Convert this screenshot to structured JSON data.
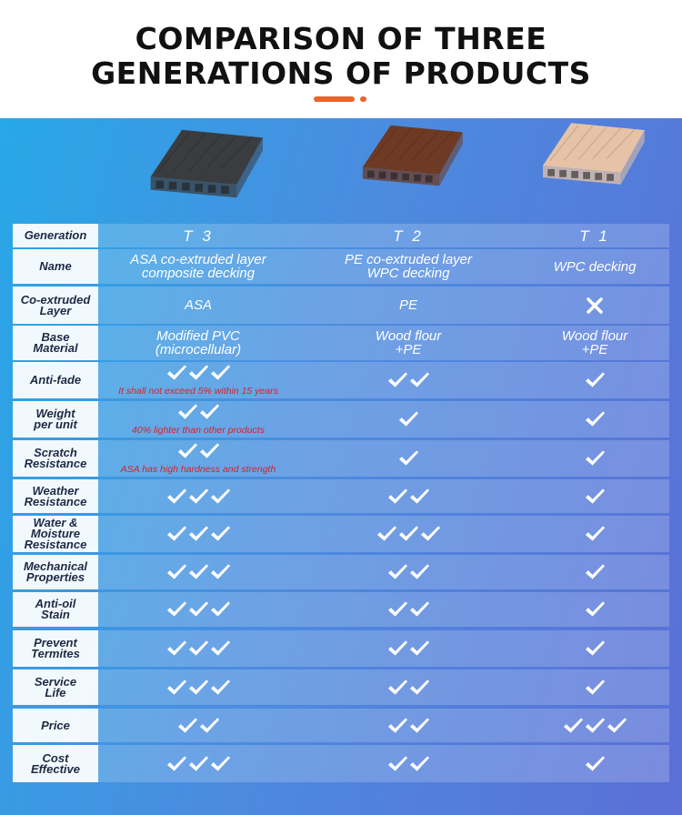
{
  "title": {
    "line1": "COMPARISON OF THREE",
    "line2": "GENERATIONS OF PRODUCTS"
  },
  "colors": {
    "accent": "#e8652b",
    "note_red": "#d8222a",
    "label_text": "#1d2a44"
  },
  "products": [
    {
      "generation": "T 3",
      "name_line1": "ASA co-extruded layer",
      "name_line2": "composite decking",
      "co_extruded": "ASA",
      "base_line1": "Modified PVC",
      "base_line2": "(microcellular)",
      "plank_color": "#3a3c40"
    },
    {
      "generation": "T 2",
      "name_line1": "PE co-extruded layer",
      "name_line2": "WPC  decking",
      "co_extruded": "PE",
      "base_line1": "Wood flour",
      "base_line2": "+PE",
      "plank_color": "#6e3a23"
    },
    {
      "generation": "T 1",
      "name_line1": "WPC  decking",
      "name_line2": "",
      "co_extruded_icon": "cross-icon",
      "base_line1": "Wood flour",
      "base_line2": "+PE",
      "plank_color": "#e6c3a6"
    }
  ],
  "labels": {
    "generation": "Generation",
    "name": "Name",
    "co_extruded_line1": "Co-extruded",
    "co_extruded_line2": "Layer",
    "base_line1": "Base",
    "base_line2": "Material"
  },
  "rating_rows": [
    {
      "label_line1": "Anti-fade",
      "label_line2": "",
      "t3": 3,
      "t2": 2,
      "t1": 1,
      "note": "It shall not exceed 5% within 15 years"
    },
    {
      "label_line1": "Weight",
      "label_line2": "per unit",
      "t3": 2,
      "t2": 1,
      "t1": 1,
      "note": "40% lighter than other products"
    },
    {
      "label_line1": "Scratch",
      "label_line2": "Resistance",
      "t3": 2,
      "t2": 1,
      "t1": 1,
      "note": "ASA has high hardness and strength"
    },
    {
      "label_line1": "Weather",
      "label_line2": "Resistance",
      "t3": 3,
      "t2": 2,
      "t1": 1,
      "note": ""
    },
    {
      "label_line1": "Water &",
      "label_line2": "Moisture",
      "label_line3": "Resistance",
      "t3": 3,
      "t2": 3,
      "t1": 1,
      "note": ""
    },
    {
      "label_line1": "Mechanical",
      "label_line2": "Properties",
      "t3": 3,
      "t2": 2,
      "t1": 1,
      "note": ""
    },
    {
      "label_line1": "Anti-oil",
      "label_line2": "Stain",
      "t3": 3,
      "t2": 2,
      "t1": 1,
      "note": ""
    },
    {
      "label_line1": "Prevent",
      "label_line2": "Termites",
      "t3": 3,
      "t2": 2,
      "t1": 1,
      "note": ""
    },
    {
      "label_line1": "Service",
      "label_line2": "Life",
      "t3": 3,
      "t2": 2,
      "t1": 1,
      "note": ""
    },
    {
      "label_line1": "Price",
      "label_line2": "",
      "t3": 2,
      "t2": 2,
      "t1": 3,
      "note": ""
    },
    {
      "label_line1": "Cost",
      "label_line2": "Effective",
      "t3": 3,
      "t2": 2,
      "t1": 1,
      "note": ""
    }
  ]
}
